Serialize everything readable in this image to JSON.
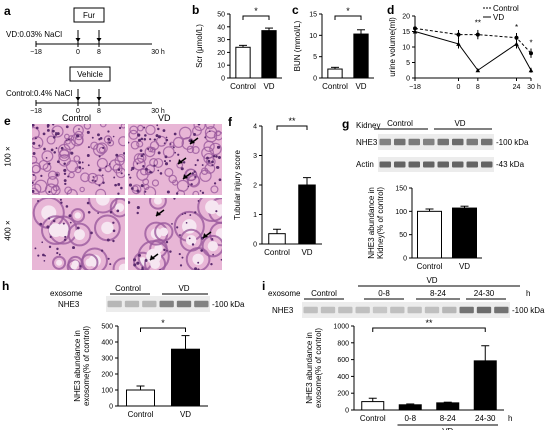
{
  "panel_a": {
    "letter": "a",
    "vd_label": "VD:0.03% NaCl",
    "control_label": "Control:0.4% NaCl",
    "fur_box": "Fur",
    "vehicle_box": "Vehicle",
    "timeline_ticks": [
      "−18",
      "0",
      "8",
      "30 h"
    ]
  },
  "panel_e": {
    "letter": "e",
    "col_control": "Control",
    "col_vd": "VD",
    "row_100": "100 ×",
    "row_400": "400 ×"
  },
  "colors": {
    "control_bar": "#ffffff",
    "vd_bar": "#000000",
    "blot_band": "#555555",
    "histo_bg": "#e8b6d6",
    "histo_dark": "#9a5a9e"
  },
  "chart_data": [
    {
      "id": "b",
      "letter": "b",
      "type": "bar",
      "categories": [
        "Control",
        "VD"
      ],
      "values": [
        24,
        37
      ],
      "errors": [
        1.5,
        2
      ],
      "ylabel": "Scr (μmol/L)",
      "ylim": [
        0,
        50
      ],
      "yticks": [
        "0",
        "10",
        "20",
        "30",
        "40",
        "50"
      ],
      "significance": "*"
    },
    {
      "id": "c",
      "letter": "c",
      "type": "bar",
      "categories": [
        "Control",
        "VD"
      ],
      "values": [
        2.1,
        10.3
      ],
      "errors": [
        0.4,
        1.0
      ],
      "ylabel": "BUN (mmol/L)",
      "ylim": [
        0,
        15
      ],
      "yticks": [
        "0",
        "5",
        "10",
        "15"
      ],
      "significance": "*"
    },
    {
      "id": "d",
      "letter": "d",
      "type": "line",
      "ylabel": "urine volume(ml)",
      "x": [
        -18,
        0,
        8,
        24,
        30
      ],
      "xticks": [
        "−18",
        "0",
        "8",
        "24",
        "30"
      ],
      "xunit": "h",
      "ylim": [
        0,
        20
      ],
      "yticks": [
        "0",
        "5",
        "10",
        "15",
        "20"
      ],
      "series": [
        {
          "name": "Control",
          "values": [
            16,
            14,
            14,
            13,
            8
          ],
          "errors": [
            2,
            1.5,
            1.5,
            1.5,
            1.5
          ],
          "dashed": true
        },
        {
          "name": "VD",
          "values": [
            15,
            11,
            2.5,
            11,
            2.5
          ],
          "errors": [
            2,
            1.5,
            0.5,
            1.5,
            0.8
          ],
          "dashed": false
        }
      ],
      "annotations": [
        "**",
        "*",
        "*"
      ]
    },
    {
      "id": "f",
      "letter": "f",
      "type": "bar",
      "categories": [
        "Control",
        "VD"
      ],
      "values": [
        0.35,
        2.0
      ],
      "errors": [
        0.15,
        0.25
      ],
      "ylabel": "Tubular injury score",
      "ylim": [
        0,
        4
      ],
      "yticks": [
        "0",
        "1",
        "2",
        "3",
        "4"
      ],
      "significance": "**"
    },
    {
      "id": "g",
      "letter": "g",
      "type": "bar",
      "categories": [
        "Control",
        "VD"
      ],
      "values": [
        100,
        107
      ],
      "errors": [
        5,
        4
      ],
      "ylabel": "NHE3 abundance in Kidney(% of control)",
      "ylim": [
        0,
        150
      ],
      "yticks": [
        "0",
        "50",
        "100",
        "150"
      ],
      "blot": {
        "header_left": "Kidney",
        "groups": [
          "Control",
          "VD"
        ],
        "rows": [
          "NHE3",
          "Actin"
        ],
        "markers": [
          "-100 kDa",
          "-43 kDa"
        ]
      }
    },
    {
      "id": "h",
      "letter": "h",
      "type": "bar",
      "categories": [
        "Control",
        "VD"
      ],
      "values": [
        100,
        355
      ],
      "errors": [
        25,
        85
      ],
      "ylabel": "NHE3 abundance in exosome(% of control)",
      "ylim": [
        0,
        500
      ],
      "yticks": [
        "0",
        "100",
        "200",
        "300",
        "400",
        "500"
      ],
      "significance": "*",
      "blot": {
        "header_left": "exosome",
        "groups": [
          "Control",
          "VD"
        ],
        "rows": [
          "NHE3"
        ],
        "markers": [
          "-100 kDa"
        ]
      }
    },
    {
      "id": "i",
      "letter": "i",
      "type": "bar",
      "categories": [
        "Control",
        "0-8",
        "8-24",
        "24-30"
      ],
      "values": [
        100,
        62,
        85,
        585
      ],
      "errors": [
        40,
        10,
        8,
        180
      ],
      "ylabel": "NHE3 abundance in exosome(% of control)",
      "ylim": [
        0,
        1000
      ],
      "yticks": [
        "0",
        "200",
        "400",
        "600",
        "800",
        "1000"
      ],
      "significance": "**",
      "group_label": "VD",
      "unit": "h",
      "blot": {
        "header_left": "exosome",
        "groups": [
          "Control",
          "0-8",
          "8-24",
          "24-30"
        ],
        "group_top": "VD",
        "unit": "h",
        "rows": [
          "NHE3"
        ],
        "markers": [
          "-100 kDa"
        ]
      }
    }
  ]
}
